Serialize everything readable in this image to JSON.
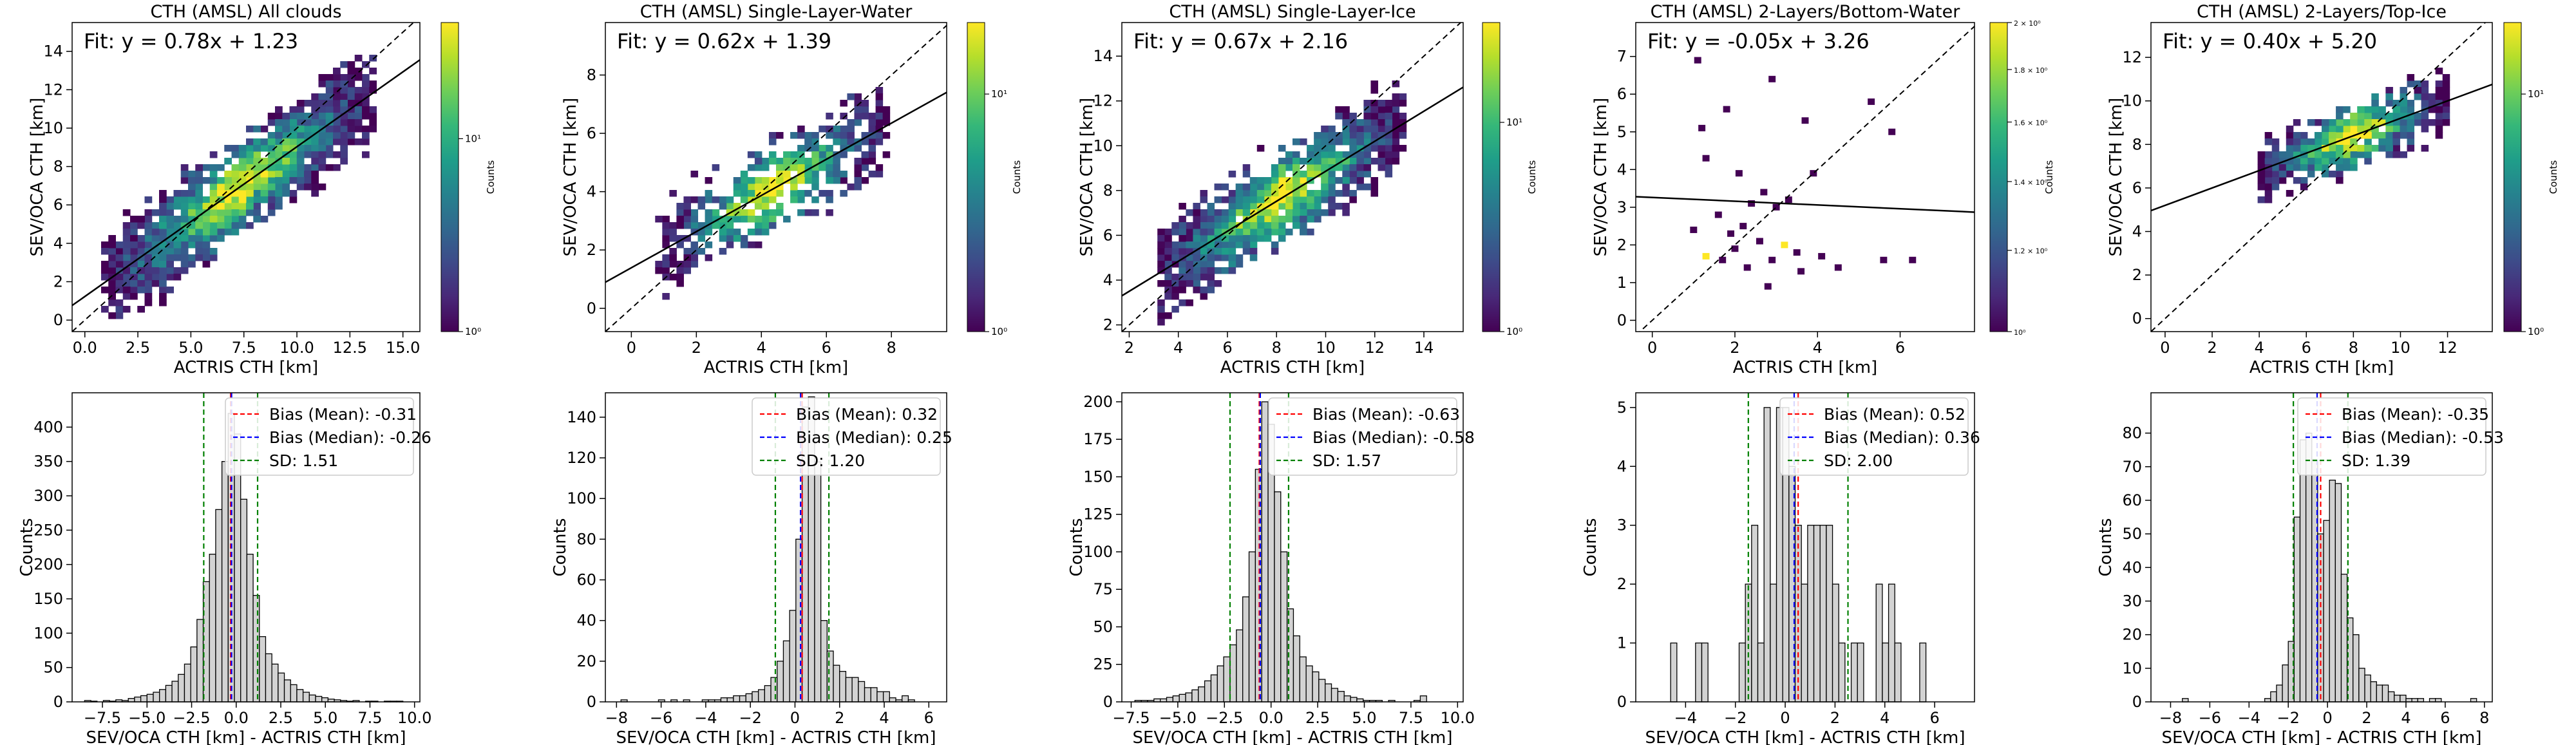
{
  "chart_data": [
    {
      "type": "heatmap",
      "title": "CTH (AMSL) All clouds",
      "xlabel": "ACTRIS CTH [km]",
      "ylabel": "SEV/OCA CTH [km]",
      "fit_text": "Fit: y = 0.78x + 1.23",
      "fit": {
        "slope": 0.78,
        "intercept": 1.23
      },
      "xlim": [
        -0.6,
        15.8
      ],
      "ylim": [
        -0.6,
        15.5
      ],
      "xticks": [
        0.0,
        2.5,
        5.0,
        7.5,
        10.0,
        12.5,
        15.0
      ],
      "xticklabels": [
        "0.0",
        "2.5",
        "5.0",
        "7.5",
        "10.0",
        "12.5",
        "15.0"
      ],
      "yticks": [
        0,
        2,
        4,
        6,
        8,
        10,
        12,
        14
      ],
      "yticklabels": [
        "0",
        "2",
        "4",
        "6",
        "8",
        "10",
        "12",
        "14"
      ],
      "colorbar": {
        "label": "Counts",
        "scale": "log",
        "min": 1,
        "max": 40,
        "ticks": [
          1,
          10
        ],
        "ticklabels": [
          "10⁰",
          "10¹"
        ]
      },
      "density_model": {
        "x_range": [
          1.0,
          13.5
        ],
        "spread": 1.4,
        "cells": 540
      }
    },
    {
      "type": "heatmap",
      "title": "CTH (AMSL) Single-Layer-Water",
      "xlabel": "ACTRIS CTH [km]",
      "ylabel": "SEV/OCA CTH [km]",
      "fit_text": "Fit: y = 0.62x + 1.39",
      "fit": {
        "slope": 0.62,
        "intercept": 1.39
      },
      "xlim": [
        -0.8,
        9.7
      ],
      "ylim": [
        -0.8,
        9.8
      ],
      "xticks": [
        0,
        2,
        4,
        6,
        8
      ],
      "xticklabels": [
        "0",
        "2",
        "4",
        "6",
        "8"
      ],
      "yticks": [
        0,
        2,
        4,
        6,
        8
      ],
      "yticklabels": [
        "0",
        "2",
        "4",
        "6",
        "8"
      ],
      "colorbar": {
        "label": "Counts",
        "scale": "log",
        "min": 1,
        "max": 20,
        "ticks": [
          1,
          10
        ],
        "ticklabels": [
          "10⁰",
          "10¹"
        ]
      },
      "density_model": {
        "x_range": [
          0.9,
          7.8
        ],
        "spread": 0.9,
        "cells": 290
      }
    },
    {
      "type": "heatmap",
      "title": "CTH (AMSL) Single-Layer-Ice",
      "xlabel": "ACTRIS CTH [km]",
      "ylabel": "SEV/OCA CTH [km]",
      "fit_text": "Fit: y = 0.67x + 2.16",
      "fit": {
        "slope": 0.67,
        "intercept": 2.16
      },
      "xlim": [
        1.7,
        15.6
      ],
      "ylim": [
        1.7,
        15.5
      ],
      "xticks": [
        2,
        4,
        6,
        8,
        10,
        12,
        14
      ],
      "xticklabels": [
        "2",
        "4",
        "6",
        "8",
        "10",
        "12",
        "14"
      ],
      "yticks": [
        2,
        4,
        6,
        8,
        10,
        12,
        14
      ],
      "yticklabels": [
        "2",
        "4",
        "6",
        "8",
        "10",
        "12",
        "14"
      ],
      "colorbar": {
        "label": "Counts",
        "scale": "log",
        "min": 1,
        "max": 30,
        "ticks": [
          1,
          10
        ],
        "ticklabels": [
          "10⁰",
          "10¹"
        ]
      },
      "density_model": {
        "x_range": [
          3.2,
          13.2
        ],
        "spread": 1.2,
        "cells": 430
      }
    },
    {
      "type": "heatmap",
      "title": "CTH (AMSL) 2-Layers/Bottom-Water",
      "xlabel": "ACTRIS CTH [km]",
      "ylabel": "SEV/OCA CTH [km]",
      "fit_text": "Fit: y = -0.05x + 3.26",
      "fit": {
        "slope": -0.05,
        "intercept": 3.26
      },
      "xlim": [
        -0.4,
        7.8
      ],
      "ylim": [
        -0.3,
        7.9
      ],
      "xticks": [
        0,
        2,
        4,
        6
      ],
      "xticklabels": [
        "0",
        "2",
        "4",
        "6"
      ],
      "yticks": [
        0,
        1,
        2,
        3,
        4,
        5,
        6,
        7
      ],
      "yticklabels": [
        "0",
        "1",
        "2",
        "3",
        "4",
        "5",
        "6",
        "7"
      ],
      "colorbar": {
        "label": "Counts",
        "scale": "log",
        "min": 1,
        "max": 2,
        "ticks": [
          1,
          1.2,
          1.4,
          1.6,
          1.8,
          2
        ],
        "ticklabels": [
          "10⁰",
          "1.2 × 10⁰",
          "1.4 × 10⁰",
          "1.6 × 10⁰",
          "1.8 × 10⁰",
          "2 × 10⁰"
        ]
      },
      "cells": [
        {
          "x": 1.1,
          "y": 6.9,
          "c": 1
        },
        {
          "x": 1.2,
          "y": 5.1,
          "c": 1
        },
        {
          "x": 1.8,
          "y": 5.6,
          "c": 1
        },
        {
          "x": 2.9,
          "y": 6.4,
          "c": 1
        },
        {
          "x": 3.7,
          "y": 5.3,
          "c": 1
        },
        {
          "x": 5.3,
          "y": 5.8,
          "c": 1
        },
        {
          "x": 5.8,
          "y": 5.0,
          "c": 1
        },
        {
          "x": 1.3,
          "y": 4.3,
          "c": 1
        },
        {
          "x": 2.1,
          "y": 3.9,
          "c": 1
        },
        {
          "x": 2.4,
          "y": 3.1,
          "c": 1
        },
        {
          "x": 2.7,
          "y": 3.4,
          "c": 1
        },
        {
          "x": 3.0,
          "y": 3.0,
          "c": 1
        },
        {
          "x": 3.3,
          "y": 3.2,
          "c": 1
        },
        {
          "x": 1.6,
          "y": 2.8,
          "c": 1
        },
        {
          "x": 1.9,
          "y": 2.3,
          "c": 1
        },
        {
          "x": 2.2,
          "y": 2.5,
          "c": 1
        },
        {
          "x": 1.3,
          "y": 1.7,
          "c": 2
        },
        {
          "x": 1.7,
          "y": 1.6,
          "c": 1
        },
        {
          "x": 2.0,
          "y": 1.9,
          "c": 1
        },
        {
          "x": 2.3,
          "y": 1.4,
          "c": 1
        },
        {
          "x": 2.6,
          "y": 2.1,
          "c": 1
        },
        {
          "x": 2.9,
          "y": 1.6,
          "c": 1
        },
        {
          "x": 3.2,
          "y": 2.0,
          "c": 2
        },
        {
          "x": 3.5,
          "y": 1.8,
          "c": 1
        },
        {
          "x": 3.6,
          "y": 1.3,
          "c": 1
        },
        {
          "x": 4.1,
          "y": 1.7,
          "c": 1
        },
        {
          "x": 4.5,
          "y": 1.4,
          "c": 1
        },
        {
          "x": 5.6,
          "y": 1.6,
          "c": 1
        },
        {
          "x": 6.3,
          "y": 1.6,
          "c": 1
        },
        {
          "x": 2.8,
          "y": 0.9,
          "c": 1
        },
        {
          "x": 1.0,
          "y": 2.4,
          "c": 1
        },
        {
          "x": 3.9,
          "y": 3.9,
          "c": 1
        }
      ]
    },
    {
      "type": "heatmap",
      "title": "CTH (AMSL) 2-Layers/Top-Ice",
      "xlabel": "ACTRIS CTH [km]",
      "ylabel": "SEV/OCA CTH [km]",
      "fit_text": "Fit: y = 0.40x + 5.20",
      "fit": {
        "slope": 0.4,
        "intercept": 5.2
      },
      "xlim": [
        -0.6,
        13.9
      ],
      "ylim": [
        -0.6,
        13.6
      ],
      "xticks": [
        0,
        2,
        4,
        6,
        8,
        10,
        12
      ],
      "xticklabels": [
        "0",
        "2",
        "4",
        "6",
        "8",
        "10",
        "12"
      ],
      "yticks": [
        0,
        2,
        4,
        6,
        8,
        10,
        12
      ],
      "yticklabels": [
        "0",
        "2",
        "4",
        "6",
        "8",
        "10",
        "12"
      ],
      "colorbar": {
        "label": "Counts",
        "scale": "log",
        "min": 1,
        "max": 20,
        "ticks": [
          1,
          10
        ],
        "ticklabels": [
          "10⁰",
          "10¹"
        ]
      },
      "density_model": {
        "x_range": [
          4.0,
          12.0
        ],
        "spread": 0.9,
        "cells": 220
      }
    },
    {
      "type": "bar",
      "xlabel": "SEV/OCA CTH [km] - ACTRIS CTH [km]",
      "ylabel": "Counts",
      "xlim": [
        -9.2,
        10.3
      ],
      "ylim": [
        0,
        450
      ],
      "xticks": [
        -7.5,
        -5.0,
        -2.5,
        0.0,
        2.5,
        5.0,
        7.5,
        10.0
      ],
      "xticklabels": [
        "−7.5",
        "−5.0",
        "−2.5",
        "0.0",
        "2.5",
        "5.0",
        "7.5",
        "10.0"
      ],
      "yticks": [
        0,
        50,
        100,
        150,
        200,
        250,
        300,
        350,
        400
      ],
      "yticklabels": [
        "0",
        "50",
        "100",
        "150",
        "200",
        "250",
        "300",
        "350",
        "400"
      ],
      "bins": {
        "start": -8.5,
        "width": 0.35
      },
      "values": [
        2,
        1,
        0,
        2,
        1,
        3,
        2,
        5,
        7,
        9,
        11,
        14,
        18,
        24,
        30,
        40,
        55,
        80,
        120,
        175,
        215,
        280,
        350,
        420,
        390,
        295,
        215,
        155,
        95,
        70,
        55,
        42,
        32,
        25,
        18,
        14,
        10,
        8,
        6,
        4,
        3,
        2,
        1,
        2,
        0,
        1,
        1,
        0,
        1,
        1,
        1
      ],
      "stats": {
        "mean": -0.31,
        "median": -0.26,
        "sd": 1.51
      },
      "legend": [
        "Bias (Mean): -0.31",
        "Bias (Median): -0.26",
        "SD: 1.51"
      ]
    },
    {
      "type": "bar",
      "xlabel": "SEV/OCA CTH [km] - ACTRIS CTH [km]",
      "ylabel": "Counts",
      "xlim": [
        -8.5,
        6.8
      ],
      "ylim": [
        0,
        152
      ],
      "xticks": [
        -8,
        -6,
        -4,
        -2,
        0,
        2,
        4,
        6
      ],
      "xticklabels": [
        "−8",
        "−6",
        "−4",
        "−2",
        "0",
        "2",
        "4",
        "6"
      ],
      "yticks": [
        0,
        20,
        40,
        60,
        80,
        100,
        120,
        140
      ],
      "yticklabels": [
        "0",
        "20",
        "40",
        "60",
        "80",
        "100",
        "120",
        "140"
      ],
      "bins": {
        "start": -7.8,
        "width": 0.28
      },
      "values": [
        1,
        0,
        0,
        0,
        0,
        0,
        1,
        0,
        1,
        0,
        1,
        0,
        0,
        1,
        1,
        1,
        2,
        2,
        3,
        3,
        4,
        5,
        6,
        8,
        12,
        20,
        30,
        45,
        80,
        145,
        150,
        118,
        40,
        25,
        18,
        15,
        12,
        12,
        10,
        7,
        7,
        5,
        5,
        2,
        1,
        3,
        1
      ],
      "stats": {
        "mean": 0.32,
        "median": 0.25,
        "sd": 1.2
      },
      "legend": [
        "Bias (Mean): 0.32",
        "Bias (Median): 0.25",
        "SD: 1.20"
      ]
    },
    {
      "type": "bar",
      "xlabel": "SEV/OCA CTH [km] - ACTRIS CTH [km]",
      "ylabel": "Counts",
      "xlim": [
        -8.0,
        10.3
      ],
      "ylim": [
        0,
        206
      ],
      "xticks": [
        -7.5,
        -5.0,
        -2.5,
        0.0,
        2.5,
        5.0,
        7.5,
        10.0
      ],
      "xticklabels": [
        "−7.5",
        "−5.0",
        "−2.5",
        "0.0",
        "2.5",
        "5.0",
        "7.5",
        "10.0"
      ],
      "yticks": [
        0,
        25,
        50,
        75,
        100,
        125,
        150,
        175,
        200
      ],
      "yticklabels": [
        "0",
        "25",
        "50",
        "75",
        "100",
        "125",
        "150",
        "175",
        "200"
      ],
      "bins": {
        "start": -7.3,
        "width": 0.34
      },
      "values": [
        1,
        1,
        1,
        2,
        2,
        3,
        4,
        5,
        6,
        8,
        10,
        14,
        18,
        24,
        30,
        38,
        48,
        70,
        100,
        155,
        200,
        185,
        140,
        100,
        62,
        44,
        30,
        24,
        20,
        15,
        12,
        9,
        7,
        4,
        3,
        2,
        1,
        1,
        1,
        0,
        1,
        0,
        0,
        0,
        1,
        4
      ],
      "stats": {
        "mean": -0.63,
        "median": -0.58,
        "sd": 1.57
      },
      "legend": [
        "Bias (Mean): -0.63",
        "Bias (Median): -0.58",
        "SD: 1.57"
      ]
    },
    {
      "type": "bar",
      "xlabel": "SEV/OCA CTH [km] - ACTRIS CTH [km]",
      "ylabel": "Counts",
      "xlim": [
        -6.0,
        7.6
      ],
      "ylim": [
        0,
        5.25
      ],
      "xticks": [
        -4,
        -2,
        0,
        2,
        4,
        6
      ],
      "xticklabels": [
        "−4",
        "−2",
        "0",
        "2",
        "4",
        "6"
      ],
      "yticks": [
        0,
        1,
        2,
        3,
        4,
        5
      ],
      "yticklabels": [
        "0",
        "1",
        "2",
        "3",
        "4",
        "5"
      ],
      "bins": {
        "start": -4.6,
        "width": 0.25
      },
      "values": [
        1,
        0,
        0,
        0,
        1,
        1,
        0,
        0,
        0,
        0,
        0,
        1,
        2,
        3,
        1,
        5,
        2,
        5,
        5,
        4,
        3,
        2,
        3,
        3,
        3,
        3,
        2,
        1,
        0,
        1,
        1,
        0,
        0,
        2,
        1,
        2,
        1,
        0,
        0,
        0,
        1
      ],
      "stats": {
        "mean": 0.52,
        "median": 0.36,
        "sd": 2.0
      },
      "legend": [
        "Bias (Mean): 0.52",
        "Bias (Median): 0.36",
        "SD: 2.00"
      ]
    },
    {
      "type": "bar",
      "xlabel": "SEV/OCA CTH [km] - ACTRIS CTH [km]",
      "ylabel": "Counts",
      "xlim": [
        -9.0,
        8.4
      ],
      "ylim": [
        0,
        92
      ],
      "xticks": [
        -8,
        -6,
        -4,
        -2,
        0,
        2,
        4,
        6,
        8
      ],
      "xticklabels": [
        "−8",
        "−6",
        "−4",
        "−2",
        "0",
        "2",
        "4",
        "6",
        "8"
      ],
      "yticks": [
        0,
        10,
        20,
        30,
        40,
        50,
        60,
        70,
        80
      ],
      "yticklabels": [
        "0",
        "10",
        "20",
        "30",
        "40",
        "50",
        "60",
        "70",
        "80"
      ],
      "bins": {
        "start": -7.4,
        "width": 0.3
      },
      "values": [
        1,
        0,
        0,
        0,
        0,
        0,
        0,
        0,
        0,
        0,
        0,
        0,
        0,
        0,
        1,
        3,
        5,
        11,
        18,
        55,
        78,
        80,
        72,
        50,
        54,
        66,
        65,
        38,
        25,
        20,
        10,
        8,
        6,
        5,
        5,
        3,
        2,
        2,
        1,
        1,
        1,
        0,
        1,
        1,
        0,
        0,
        0,
        0,
        0,
        1
      ],
      "stats": {
        "mean": -0.35,
        "median": -0.53,
        "sd": 1.39
      },
      "legend": [
        "Bias (Mean): -0.35",
        "Bias (Median): -0.53",
        "SD: 1.39"
      ]
    }
  ]
}
